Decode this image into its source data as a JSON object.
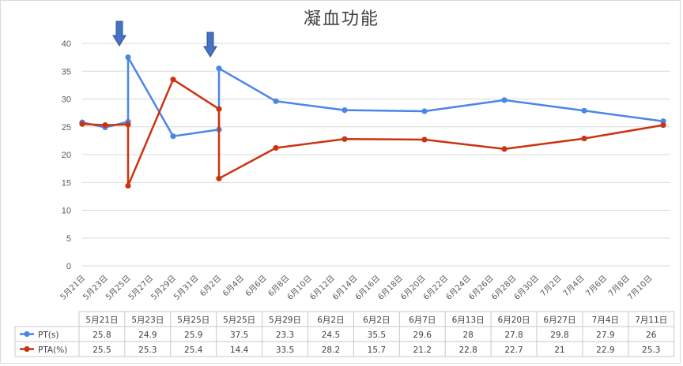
{
  "chart_data": {
    "type": "line",
    "title": "凝血功能",
    "xlabel": "",
    "ylabel": "",
    "ylim": [
      0,
      40
    ],
    "yticks": [
      0,
      5,
      10,
      15,
      20,
      25,
      30,
      35,
      40
    ],
    "grid": true,
    "legend": "table-below",
    "x_axis_ticks": [
      "5月21日",
      "5月23日",
      "5月25日",
      "5月27日",
      "5月29日",
      "5月31日",
      "6月2日",
      "6月4日",
      "6月6日",
      "6月8日",
      "6月10日",
      "6月12日",
      "6月14日",
      "6月16日",
      "6月18日",
      "6月20日",
      "6月22日",
      "6月24日",
      "6月26日",
      "6月28日",
      "6月30日",
      "7月2日",
      "7月4日",
      "7月6日",
      "7月8日",
      "7月10日"
    ],
    "categories": [
      "5月21日",
      "5月23日",
      "5月25日",
      "5月25日",
      "5月29日",
      "6月2日",
      "6月2日",
      "6月7日",
      "6月13日",
      "6月20日",
      "6月27日",
      "7月4日",
      "7月11日"
    ],
    "series": [
      {
        "name": "PT(s)",
        "color": "#4a86e8",
        "values": [
          25.8,
          24.9,
          25.9,
          37.5,
          23.3,
          24.5,
          35.5,
          29.6,
          28,
          27.8,
          29.8,
          27.9,
          26
        ]
      },
      {
        "name": "PTA(%)",
        "color": "#cc3311",
        "values": [
          25.5,
          25.3,
          25.4,
          14.4,
          33.5,
          28.2,
          15.7,
          21.2,
          22.8,
          22.7,
          21,
          22.9,
          25.3
        ]
      }
    ],
    "annotations": [
      {
        "type": "arrow-down-icon",
        "color": "#4472c4",
        "at_category_index": 3
      },
      {
        "type": "arrow-down-icon",
        "color": "#4472c4",
        "at_category_index": 6
      }
    ]
  }
}
